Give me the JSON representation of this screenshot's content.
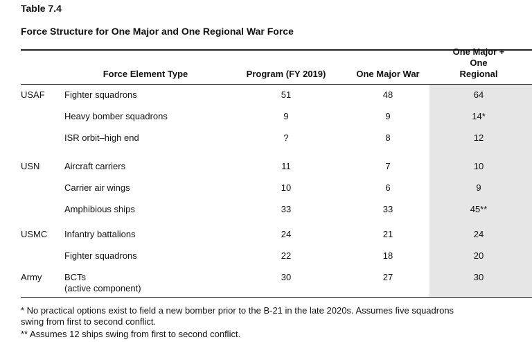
{
  "header": {
    "label": "Table 7.4",
    "title": "Force Structure for One Major and One Regional War Force"
  },
  "table": {
    "columns": [
      "Force Element Type",
      "Program (FY 2019)",
      "One Major War",
      "One Major + One\nRegional"
    ],
    "groups": [
      {
        "name": "USAF",
        "rows": [
          [
            "Fighter squadrons",
            51,
            48,
            64
          ],
          [
            "Heavy bomber squadrons",
            9,
            9,
            "14*"
          ],
          [
            "ISR orbit–high end",
            "?",
            8,
            12
          ]
        ]
      },
      {
        "name": "USN",
        "rows": [
          [
            "Aircraft carriers",
            11,
            7,
            10
          ],
          [
            "Carrier air wings",
            10,
            6,
            9
          ],
          [
            "Amphibious ships",
            33,
            33,
            "45**"
          ]
        ]
      },
      {
        "name": "USMC",
        "rows": [
          [
            "Infantry battalions",
            24,
            21,
            24
          ],
          [
            "Fighter squadrons",
            22,
            18,
            20
          ]
        ]
      },
      {
        "name": "Army",
        "rows": [
          [
            "BCTs\n(active component)",
            30,
            27,
            30
          ]
        ]
      }
    ]
  },
  "notes": [
    "* No practical options exist to field a new bomber prior to the B-21 in the late 2020s. Assumes five squadrons\nswing from first to second conflict.",
    "** Assumes 12 ships swing from first to second conflict."
  ]
}
